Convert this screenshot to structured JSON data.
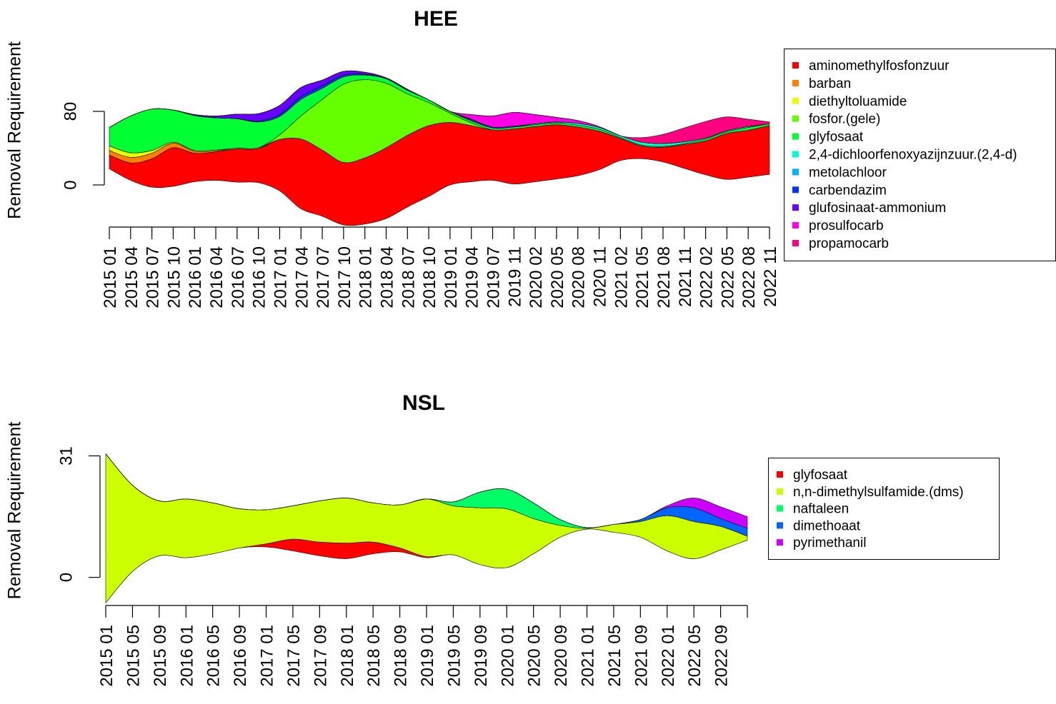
{
  "chart_data": [
    {
      "type": "stream",
      "title": "HEE",
      "y_label": "Removal Requirement",
      "categories": [
        "2015 01",
        "2015 04",
        "2015 07",
        "2015 10",
        "2016 01",
        "2016 04",
        "2016 07",
        "2016 10",
        "2017 01",
        "2017 04",
        "2017 07",
        "2017 10",
        "2018 01",
        "2018 04",
        "2018 07",
        "2018 10",
        "2019 01",
        "2019 04",
        "2019 07",
        "2019 11",
        "2020 02",
        "2020 05",
        "2020 08",
        "2020 11",
        "2021 02",
        "2021 05",
        "2021 08",
        "2021 11",
        "2022 02",
        "2022 05",
        "2022 08",
        "2022 11"
      ],
      "series": [
        {
          "name": "aminomethylfosfonzuur",
          "color": "#ff0000",
          "values": [
            15,
            19,
            31,
            42,
            31,
            31,
            36,
            37,
            56,
            76,
            72,
            68,
            72,
            77,
            78,
            77,
            68,
            61,
            55,
            60,
            60,
            59,
            53,
            42,
            24,
            14,
            16,
            26,
            37,
            50,
            51,
            53
          ]
        },
        {
          "name": "barban",
          "color": "#ff8000",
          "values": [
            5,
            6,
            6,
            5,
            2,
            1,
            1,
            1,
            0,
            0,
            0,
            0,
            0,
            0,
            0,
            0,
            0,
            0,
            0,
            0,
            0,
            0,
            0,
            0,
            0,
            0,
            0,
            0,
            0,
            0,
            0,
            0
          ]
        },
        {
          "name": "diethyltoluamide",
          "color": "#e6ff00",
          "values": [
            5,
            5,
            3,
            1,
            1,
            1,
            0,
            0,
            0,
            0,
            0,
            0,
            0,
            0,
            0,
            0,
            0,
            0,
            0,
            0,
            0,
            0,
            0,
            0,
            0,
            0,
            0,
            0,
            0,
            0,
            0,
            0
          ]
        },
        {
          "name": "fosfor.(gele)",
          "color": "#66ff00",
          "values": [
            0,
            0,
            0,
            0,
            0,
            0,
            0,
            0,
            5,
            25,
            55,
            85,
            85,
            70,
            45,
            25,
            10,
            3,
            0,
            0,
            0,
            0,
            0,
            0,
            0,
            0,
            0,
            0,
            0,
            0,
            0,
            0
          ]
        },
        {
          "name": "glyfosaat",
          "color": "#00ff33",
          "values": [
            20,
            40,
            45,
            35,
            38,
            35,
            32,
            28,
            20,
            18,
            12,
            8,
            5,
            5,
            4,
            3,
            2,
            2,
            2,
            2,
            2,
            2,
            2,
            2,
            1,
            1,
            1,
            1,
            2,
            2,
            3,
            2
          ]
        },
        {
          "name": "2,4-dichloorfenoxyazijnzuur.(2,4-d)",
          "color": "#00ffcc",
          "values": [
            0,
            0,
            0,
            0,
            0,
            0,
            0,
            0,
            0,
            0,
            0,
            0,
            0,
            0,
            0,
            0,
            0,
            0,
            0,
            0,
            1,
            1,
            2,
            2,
            2,
            3,
            3,
            2,
            1,
            1,
            1,
            0
          ]
        },
        {
          "name": "metolachloor",
          "color": "#00b3ff",
          "values": [
            0,
            0,
            0,
            0,
            0,
            0,
            0,
            0,
            0,
            0,
            0,
            0,
            0,
            0,
            0,
            0,
            0,
            1,
            0,
            0,
            0,
            0,
            0,
            0,
            0,
            0,
            0,
            0,
            0,
            0,
            0,
            0
          ]
        },
        {
          "name": "carbendazim",
          "color": "#0033ff",
          "values": [
            0,
            0,
            0,
            0,
            0,
            0,
            0,
            1,
            2,
            3,
            3,
            2,
            1,
            0,
            0,
            0,
            0,
            1,
            1,
            1,
            0,
            0,
            0,
            0,
            0,
            0,
            0,
            0,
            0,
            0,
            0,
            0
          ]
        },
        {
          "name": "glufosinaat-ammonium",
          "color": "#6600ff",
          "values": [
            0,
            0,
            0,
            0,
            1,
            2,
            5,
            8,
            10,
            10,
            6,
            4,
            2,
            1,
            1,
            0,
            0,
            0,
            0,
            0,
            0,
            0,
            0,
            0,
            0,
            0,
            0,
            0,
            0,
            0,
            0,
            0
          ]
        },
        {
          "name": "prosulfocarb",
          "color": "#ff00e6",
          "values": [
            0,
            0,
            0,
            0,
            0,
            0,
            0,
            0,
            0,
            0,
            0,
            0,
            0,
            0,
            0,
            0,
            0,
            5,
            12,
            15,
            10,
            5,
            3,
            1,
            0,
            0,
            0,
            0,
            0,
            0,
            0,
            0
          ]
        },
        {
          "name": "propamocarb",
          "color": "#ff0080",
          "values": [
            0,
            0,
            0,
            0,
            0,
            0,
            0,
            0,
            0,
            0,
            0,
            0,
            0,
            0,
            0,
            0,
            0,
            0,
            0,
            0,
            0,
            0,
            0,
            0,
            0,
            5,
            10,
            15,
            18,
            15,
            8,
            2
          ]
        }
      ],
      "ylim": [
        -45,
        125
      ],
      "yticks": [
        0,
        80
      ],
      "legend": "right"
    },
    {
      "type": "stream",
      "title": "NSL",
      "y_label": "Removal Requirement",
      "categories": [
        "2015 01",
        "2015 05",
        "2015 09",
        "2016 01",
        "2016 05",
        "2016 09",
        "2017 01",
        "2017 05",
        "2017 09",
        "2018 01",
        "2018 05",
        "2018 09",
        "2019 01",
        "2019 05",
        "2019 09",
        "2020 01",
        "2020 05",
        "2020 09",
        "2021 01",
        "2021 05",
        "2021 09",
        "2022 01",
        "2022 05",
        "2022 09",
        null
      ],
      "series": [
        {
          "name": "glyfosaat",
          "color": "#ff0000",
          "values": [
            0,
            0,
            0,
            0,
            0,
            0,
            0.8,
            3,
            3.5,
            4,
            3,
            1,
            0.3,
            0,
            0,
            0,
            0,
            0,
            0,
            0,
            0,
            0,
            0,
            0,
            0
          ]
        },
        {
          "name": "n,n-dimethylsulfamide.(dms)",
          "color": "#ccff00",
          "values": [
            38,
            22,
            14,
            15,
            13,
            10,
            8.7,
            8.5,
            10.5,
            11.5,
            10,
            11,
            14.7,
            12.5,
            14.5,
            15,
            9,
            3,
            0.2,
            2,
            4,
            9,
            9.5,
            6,
            1
          ]
        },
        {
          "name": "naftaleen",
          "color": "#00ff66",
          "values": [
            0,
            0,
            0,
            0,
            0,
            0,
            0,
            0,
            0,
            0,
            0,
            0,
            0,
            1,
            4,
            5,
            4,
            1.5,
            0.2,
            0,
            0,
            0,
            0,
            0,
            0
          ]
        },
        {
          "name": "dimethoaat",
          "color": "#0066ff",
          "values": [
            0,
            0,
            0,
            0,
            0,
            0,
            0,
            0,
            0,
            0,
            0,
            0,
            0,
            0,
            0,
            0,
            0,
            0,
            0,
            0,
            0.5,
            2,
            3.5,
            2,
            2
          ]
        },
        {
          "name": "pyrimethanil",
          "color": "#cc00ff",
          "values": [
            0,
            0,
            0,
            0,
            0,
            0,
            0,
            0,
            0,
            0,
            0,
            0,
            0,
            0,
            0,
            0,
            0,
            0,
            0,
            0,
            0,
            0.5,
            2.5,
            3,
            3
          ]
        }
      ],
      "ylim": [
        -7,
        32
      ],
      "yticks": [
        0,
        31
      ],
      "legend": "right"
    }
  ]
}
